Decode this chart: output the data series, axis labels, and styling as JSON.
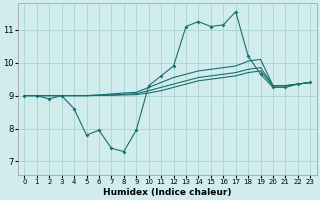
{
  "xlabel": "Humidex (Indice chaleur)",
  "bg_color": "#d0ecec",
  "grid_color": "#a8d4d4",
  "line_color": "#1a6e6e",
  "xlim": [
    -0.5,
    23.5
  ],
  "ylim": [
    6.6,
    11.8
  ],
  "xticks": [
    0,
    1,
    2,
    3,
    4,
    5,
    6,
    7,
    8,
    9,
    10,
    11,
    12,
    13,
    14,
    15,
    16,
    17,
    18,
    19,
    20,
    21,
    22,
    23
  ],
  "yticks": [
    7,
    8,
    9,
    10,
    11
  ],
  "line1_x": [
    0,
    1,
    2,
    3,
    4,
    5,
    6,
    7,
    8,
    9,
    10,
    11,
    12,
    13,
    14,
    15,
    16,
    17,
    18,
    19,
    20,
    21,
    22,
    23
  ],
  "line1_y": [
    9.0,
    9.0,
    8.9,
    9.0,
    8.6,
    7.8,
    7.95,
    7.4,
    7.3,
    7.95,
    9.3,
    9.6,
    9.9,
    11.1,
    11.25,
    11.1,
    11.15,
    11.55,
    10.2,
    9.65,
    9.25,
    9.25,
    9.35,
    9.4
  ],
  "line2_x": [
    0,
    1,
    2,
    3,
    4,
    5,
    6,
    7,
    8,
    9,
    10,
    11,
    12,
    13,
    14,
    15,
    16,
    17,
    18,
    19,
    20,
    21,
    22,
    23
  ],
  "line2_y": [
    9.0,
    9.0,
    9.0,
    9.0,
    9.0,
    9.0,
    9.02,
    9.05,
    9.08,
    9.1,
    9.25,
    9.4,
    9.55,
    9.65,
    9.75,
    9.8,
    9.85,
    9.9,
    10.05,
    10.1,
    9.3,
    9.3,
    9.35,
    9.4
  ],
  "line3_x": [
    0,
    1,
    2,
    3,
    4,
    5,
    6,
    7,
    8,
    9,
    10,
    11,
    12,
    13,
    14,
    15,
    16,
    17,
    18,
    19,
    20,
    21,
    22,
    23
  ],
  "line3_y": [
    9.0,
    9.0,
    9.0,
    9.0,
    9.0,
    9.0,
    9.01,
    9.02,
    9.04,
    9.06,
    9.15,
    9.25,
    9.35,
    9.45,
    9.55,
    9.6,
    9.65,
    9.7,
    9.8,
    9.85,
    9.3,
    9.3,
    9.35,
    9.4
  ],
  "line4_x": [
    0,
    1,
    2,
    3,
    4,
    5,
    6,
    7,
    8,
    9,
    10,
    11,
    12,
    13,
    14,
    15,
    16,
    17,
    18,
    19,
    20,
    21,
    22,
    23
  ],
  "line4_y": [
    9.0,
    9.0,
    9.0,
    9.0,
    9.0,
    9.0,
    9.005,
    9.01,
    9.02,
    9.03,
    9.08,
    9.15,
    9.25,
    9.35,
    9.45,
    9.5,
    9.55,
    9.6,
    9.7,
    9.75,
    9.3,
    9.3,
    9.35,
    9.4
  ]
}
